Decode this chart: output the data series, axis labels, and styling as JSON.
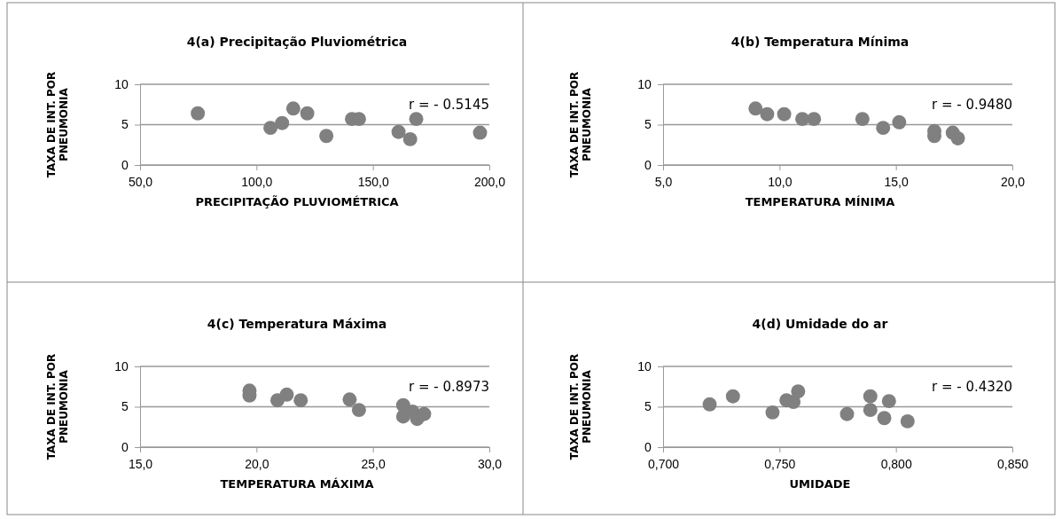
{
  "chart_data": [
    {
      "type": "scatter",
      "title": "4(a) Precipitação  Pluviométrica",
      "xlabel": "PRECIPITAÇÃO  PLUVIOMÉTRICA",
      "ylabel": "TAXA DE INT. POR\nPNEUMONIA",
      "annotations": [
        "r = - 0.5145"
      ],
      "marker": "circle",
      "grid": "y",
      "xlim": [
        50,
        200
      ],
      "xticks": [
        {
          "value": 50,
          "label": "50,0"
        },
        {
          "value": 100,
          "label": "100,0"
        },
        {
          "value": 150,
          "label": "150,0"
        },
        {
          "value": 200,
          "label": "200,0"
        }
      ],
      "ylim": [
        0,
        10
      ],
      "yticks": [
        0,
        5,
        10
      ],
      "series": [
        {
          "color": "#808080",
          "x": [
            74.8,
            106,
            111,
            115.8,
            121.8,
            130,
            141,
            144,
            161,
            166,
            168.6,
            196
          ],
          "values": [
            6.4,
            4.6,
            5.2,
            7.0,
            6.4,
            3.6,
            5.7,
            5.7,
            4.1,
            3.2,
            5.7,
            4.0
          ]
        }
      ]
    },
    {
      "type": "scatter",
      "title": "4(b) Temperatura Mínima",
      "xlabel": "TEMPERATURA MÍNIMA",
      "ylabel": "TAXA DE INT. POR\nPNEUMONIA",
      "annotations": [
        "r = - 0.9480"
      ],
      "marker": "circle",
      "grid": "y",
      "xlim": [
        5,
        20
      ],
      "xticks": [
        {
          "value": 5,
          "label": "5,0"
        },
        {
          "value": 10,
          "label": "10,0"
        },
        {
          "value": 15,
          "label": "15,0"
        },
        {
          "value": 20,
          "label": "20,0"
        }
      ],
      "ylim": [
        0,
        10
      ],
      "yticks": [
        0,
        5,
        10
      ],
      "series": [
        {
          "color": "#808080",
          "x": [
            8.97,
            9.47,
            10.2,
            10.98,
            11.48,
            13.56,
            14.45,
            15.14,
            16.65,
            16.65,
            17.44,
            17.66
          ],
          "values": [
            7.0,
            6.3,
            6.3,
            5.7,
            5.7,
            5.7,
            4.6,
            5.3,
            4.2,
            3.6,
            4.0,
            3.3
          ]
        }
      ]
    },
    {
      "type": "scatter",
      "title": "4(c) Temperatura Máxima",
      "xlabel": "TEMPERATURA   MÁXIMA",
      "ylabel": "TAXA DE INT. POR\nPNEUMONIA",
      "annotations": [
        "r = - 0.8973"
      ],
      "marker": "circle",
      "grid": "y",
      "xlim": [
        15,
        30
      ],
      "xticks": [
        {
          "value": 15,
          "label": "15,0"
        },
        {
          "value": 20,
          "label": "20,0"
        },
        {
          "value": 25,
          "label": "25,0"
        },
        {
          "value": 30,
          "label": "30,0"
        }
      ],
      "ylim": [
        0,
        10
      ],
      "yticks": [
        0,
        5,
        10
      ],
      "series": [
        {
          "color": "#808080",
          "x": [
            19.7,
            19.7,
            20.9,
            21.3,
            21.9,
            24.0,
            24.4,
            26.3,
            26.3,
            26.7,
            26.9,
            27.2
          ],
          "values": [
            7.0,
            6.4,
            5.8,
            6.5,
            5.8,
            5.9,
            4.6,
            5.2,
            3.8,
            4.4,
            3.5,
            4.1
          ]
        }
      ]
    },
    {
      "type": "scatter",
      "title": "4(d) Umidade  do ar",
      "xlabel": "UMIDADE",
      "ylabel": "TAXA DE INT. POR\nPNEUMONIA",
      "annotations": [
        "r = - 0.4320"
      ],
      "marker": "circle",
      "grid": "y",
      "xlim": [
        0.7,
        0.85
      ],
      "xticks": [
        {
          "value": 0.7,
          "label": "0,700"
        },
        {
          "value": 0.75,
          "label": "0,750"
        },
        {
          "value": 0.8,
          "label": "0,800"
        },
        {
          "value": 0.85,
          "label": "0,850"
        }
      ],
      "ylim": [
        0,
        10
      ],
      "yticks": [
        0,
        5,
        10
      ],
      "series": [
        {
          "color": "#808080",
          "x": [
            0.72,
            0.73,
            0.747,
            0.753,
            0.756,
            0.758,
            0.779,
            0.789,
            0.789,
            0.795,
            0.797,
            0.805
          ],
          "values": [
            5.3,
            6.3,
            4.3,
            5.8,
            5.6,
            6.9,
            4.1,
            6.3,
            4.6,
            3.6,
            5.7,
            3.2
          ]
        }
      ]
    }
  ]
}
